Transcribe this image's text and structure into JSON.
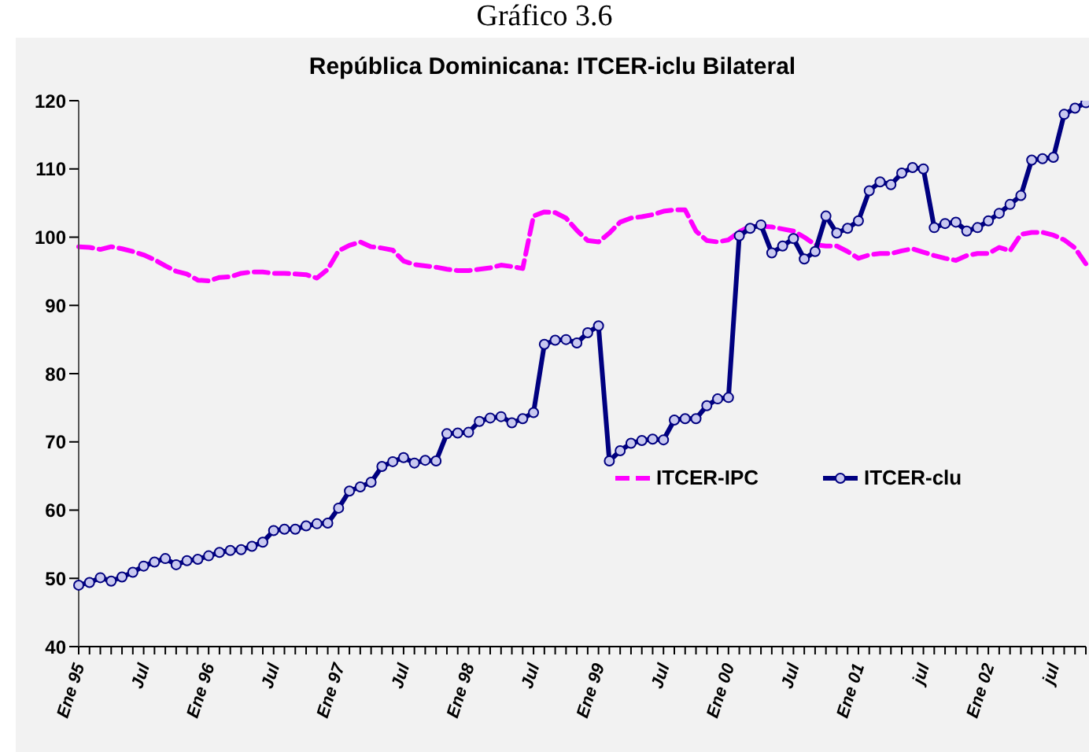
{
  "chart_data": {
    "type": "line",
    "title": "República Dominicana: ITCER-iclu Bilateral",
    "annotations": [
      "Gráfico 3.6"
    ],
    "categories": [
      "Ene 95",
      null,
      null,
      null,
      null,
      null,
      "Jul",
      null,
      null,
      null,
      null,
      null,
      "Ene 96",
      null,
      null,
      null,
      null,
      null,
      "Jul",
      null,
      null,
      null,
      null,
      null,
      "Ene 97",
      null,
      null,
      null,
      null,
      null,
      "Jul",
      null,
      null,
      null,
      null,
      null,
      "Ene 98",
      null,
      null,
      null,
      null,
      null,
      "Jul",
      null,
      null,
      null,
      null,
      null,
      "Ene 99",
      null,
      null,
      null,
      null,
      null,
      "Jul",
      null,
      null,
      null,
      null,
      null,
      "Ene 00",
      null,
      null,
      null,
      null,
      null,
      "Jul",
      null,
      null,
      null,
      null,
      null,
      "Ene 01",
      null,
      null,
      null,
      null,
      null,
      "jul",
      null,
      null,
      null,
      null,
      null,
      "Ene 02",
      null,
      null,
      null,
      null,
      null,
      "jul",
      null,
      null,
      null
    ],
    "series": [
      {
        "name": "ITCER-IPC",
        "color": "#ff00ff",
        "line_style": "dashed",
        "marker": "none",
        "values": [
          98.6,
          98.5,
          98.2,
          98.6,
          98.3,
          97.9,
          97.4,
          96.7,
          95.8,
          95.0,
          94.6,
          93.7,
          93.6,
          94.1,
          94.2,
          94.7,
          94.9,
          94.9,
          94.7,
          94.7,
          94.6,
          94.5,
          94.0,
          95.3,
          98.0,
          98.8,
          99.3,
          98.6,
          98.4,
          98.1,
          96.5,
          96.0,
          95.8,
          95.6,
          95.3,
          95.1,
          95.1,
          95.3,
          95.5,
          95.9,
          95.7,
          95.4,
          103.1,
          103.7,
          103.6,
          102.8,
          101.0,
          99.5,
          99.3,
          100.6,
          102.2,
          102.8,
          103.0,
          103.3,
          103.8,
          104.0,
          104.0,
          100.9,
          99.5,
          99.3,
          99.6,
          100.8,
          101.6,
          101.6,
          101.5,
          101.2,
          100.9,
          100.0,
          98.9,
          98.7,
          98.7,
          97.9,
          96.9,
          97.4,
          97.6,
          97.6,
          98.0,
          98.3,
          97.8,
          97.3,
          96.9,
          96.6,
          97.3,
          97.6,
          97.6,
          98.5,
          98.0,
          100.4,
          100.7,
          100.7,
          100.3,
          99.6,
          98.4,
          96.1
        ]
      },
      {
        "name": "ITCER-clu",
        "color": "#000080",
        "line_style": "solid",
        "marker": "circle",
        "values": [
          49.0,
          49.4,
          50.1,
          49.6,
          50.2,
          50.9,
          51.8,
          52.4,
          52.9,
          52.0,
          52.6,
          52.8,
          53.3,
          53.8,
          54.1,
          54.2,
          54.7,
          55.3,
          57.0,
          57.2,
          57.2,
          57.7,
          58.0,
          58.1,
          60.3,
          62.8,
          63.4,
          64.1,
          66.4,
          67.1,
          67.7,
          66.9,
          67.3,
          67.2,
          71.2,
          71.3,
          71.4,
          73.0,
          73.5,
          73.7,
          72.8,
          73.4,
          74.3,
          84.3,
          84.9,
          85.0,
          84.5,
          86.0,
          87.0,
          67.2,
          68.7,
          69.8,
          70.2,
          70.4,
          70.3,
          73.2,
          73.4,
          73.4,
          75.3,
          76.3,
          76.5,
          100.2,
          101.3,
          101.8,
          97.7,
          98.7,
          99.8,
          96.8,
          97.9,
          103.1,
          100.6,
          101.3,
          102.4,
          106.8,
          108.1,
          107.7,
          109.4,
          110.2,
          110.0,
          101.4,
          102.0,
          102.2,
          100.9,
          101.4,
          102.4,
          103.5,
          104.8,
          106.1,
          111.3,
          111.5,
          111.7,
          118.0,
          118.9,
          119.7
        ]
      }
    ],
    "ylim": [
      40,
      120
    ],
    "yticks": [
      40,
      50,
      60,
      70,
      80,
      90,
      100,
      110,
      120
    ],
    "grid": false,
    "legend": "right"
  }
}
